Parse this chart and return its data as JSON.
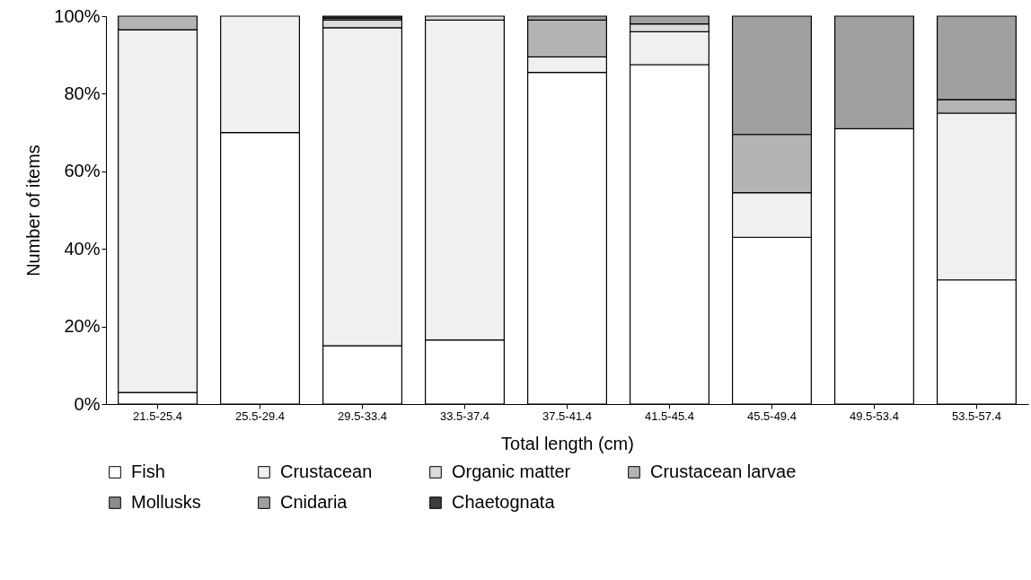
{
  "chart_data": {
    "type": "bar",
    "stacked": true,
    "xlabel": "Total length (cm)",
    "ylabel": "Number of items",
    "categories": [
      "21.5-25.4",
      "25.5-29.4",
      "29.5-33.4",
      "33.5-37.4",
      "37.5-41.4",
      "41.5-45.4",
      "45.5-49.4",
      "49.5-53.4",
      "53.5-57.4"
    ],
    "series": [
      {
        "name": "Fish",
        "color": "#ffffff",
        "values": [
          3,
          70,
          15,
          16.5,
          85.5,
          87.5,
          43,
          71,
          32
        ]
      },
      {
        "name": "Crustacean",
        "color": "#f0f0f0",
        "values": [
          93.5,
          30,
          82,
          82.5,
          4,
          8.5,
          11.5,
          null,
          43
        ]
      },
      {
        "name": "Organic matter",
        "color": "#dcdcdc",
        "values": [
          null,
          null,
          2,
          1,
          null,
          2,
          null,
          null,
          null
        ]
      },
      {
        "name": "Crustacean larvae",
        "color": "#b4b4b4",
        "values": [
          3.5,
          null,
          null,
          null,
          9.5,
          null,
          15,
          null,
          3.5
        ]
      },
      {
        "name": "Mollusks",
        "color": "#8c8c8c",
        "values": [
          null,
          null,
          0.5,
          null,
          null,
          null,
          null,
          null,
          null
        ]
      },
      {
        "name": "Cnidaria",
        "color": "#a0a0a0",
        "values": [
          null,
          null,
          null,
          null,
          1,
          2,
          30.5,
          29,
          21.5
        ]
      },
      {
        "name": "Chaetognata",
        "color": "#3c3c3c",
        "values": [
          null,
          null,
          0.5,
          null,
          null,
          null,
          null,
          null,
          null
        ]
      }
    ],
    "ylim": [
      0,
      100
    ],
    "yticks": [
      {
        "value": 0,
        "label": "0%"
      },
      {
        "value": 20,
        "label": "20%"
      },
      {
        "value": 40,
        "label": "40%"
      },
      {
        "value": 60,
        "label": "60%"
      },
      {
        "value": 80,
        "label": "80%"
      },
      {
        "value": 100,
        "label": "100%"
      }
    ],
    "grid": false,
    "legend": "bottom"
  }
}
